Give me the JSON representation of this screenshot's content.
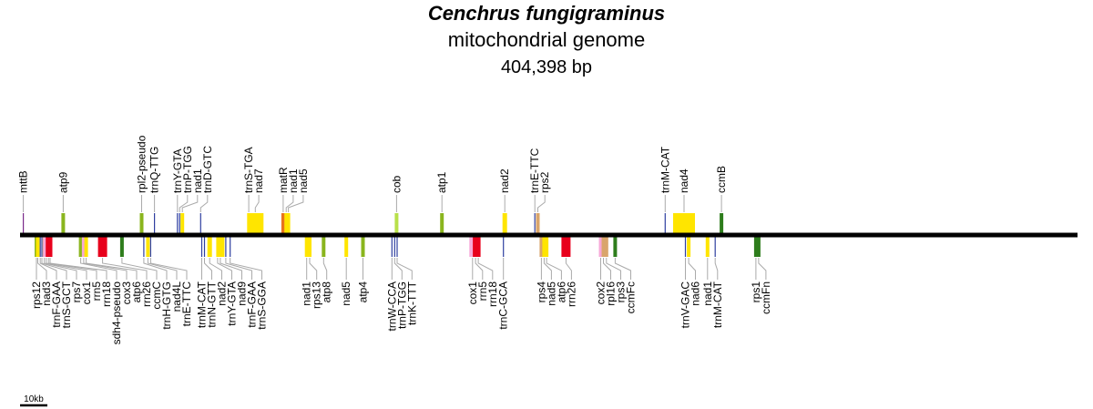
{
  "title": {
    "species": "Cenchrus fungigraminus",
    "subtitle": "mitochondrial genome",
    "size": "404,398 bp"
  },
  "scale_bar": {
    "label": "10kb",
    "length_kb": 10
  },
  "genome_length_bp": 404398,
  "colors": {
    "backbone": "#000000",
    "leader": "#aaaaaa",
    "yellow": "#ffe500",
    "red": "#e8001c",
    "green": "#2e7d1c",
    "olive": "#8ab51e",
    "lightgreen": "#b8e04a",
    "tan": "#d9a56b",
    "pink": "#f7a8d8",
    "blue": "#2f3fa0",
    "purple": "#7a2a8a",
    "orange": "#e8741c"
  },
  "genes_top": [
    {
      "label": "mttB",
      "kb": 1.2,
      "color": "purple"
    },
    {
      "label": "atp9",
      "kb": 15.8,
      "color": "olive"
    },
    {
      "label": "rpl2-pseudo",
      "kb": 44.5,
      "color": "olive"
    },
    {
      "label": "trnQ-TTG",
      "kb": 49.2,
      "color": "blue"
    },
    {
      "label": "trnY-GTA",
      "kb": 57.6,
      "color": "blue"
    },
    {
      "label": "trnP-TGG",
      "kb": 58.4,
      "color": "blue"
    },
    {
      "label": "nad1",
      "kb": 59.4,
      "color": "yellow"
    },
    {
      "label": "trnD-GTC",
      "kb": 66.1,
      "color": "blue"
    },
    {
      "label": "trnS-TGA",
      "kb": 83.7,
      "color": "blue"
    },
    {
      "label": "nad7",
      "kb": 86.1,
      "color": "yellow"
    },
    {
      "label": "matR",
      "kb": 96.3,
      "color": "orange"
    },
    {
      "label": "nad1",
      "kb": 97.4,
      "color": "yellow"
    },
    {
      "label": "nad5",
      "kb": 98.2,
      "color": "yellow"
    },
    {
      "label": "cob",
      "kb": 137.8,
      "color": "lightgreen"
    },
    {
      "label": "atp1",
      "kb": 154.4,
      "color": "olive"
    },
    {
      "label": "nad2",
      "kb": 177.4,
      "color": "yellow"
    },
    {
      "label": "trnE-TTC",
      "kb": 188.4,
      "color": "blue"
    },
    {
      "label": "rps2",
      "kb": 189.5,
      "color": "tan"
    },
    {
      "label": "trnM-CAT",
      "kb": 236.1,
      "color": "blue"
    },
    {
      "label": "nad4",
      "kb": 243.0,
      "color": "yellow"
    },
    {
      "label": "ccmB",
      "kb": 256.7,
      "color": "green"
    }
  ],
  "genes_bottom": [
    {
      "label": "rps12",
      "kb": 6.0,
      "color": "olive"
    },
    {
      "label": "nad3",
      "kb": 6.5,
      "color": "yellow"
    },
    {
      "label": "trnF-GAA",
      "kb": 7.4,
      "color": "blue"
    },
    {
      "label": "trnS-GCT",
      "kb": 8.0,
      "color": "blue"
    },
    {
      "label": "rps7",
      "kb": 8.9,
      "color": "tan"
    },
    {
      "label": "cox1",
      "kb": 9.6,
      "color": "pink"
    },
    {
      "label": "rrn5",
      "kb": 10.4,
      "color": "red"
    },
    {
      "label": "rrn18",
      "kb": 11.0,
      "color": "red"
    },
    {
      "label": "sdh4-pseudo",
      "kb": 22.2,
      "color": "olive"
    },
    {
      "label": "cox3",
      "kb": 23.3,
      "color": "pink"
    },
    {
      "label": "atp6",
      "kb": 24.2,
      "color": "yellow"
    },
    {
      "label": "rrn26",
      "kb": 30.2,
      "color": "red"
    },
    {
      "label": "ccmC",
      "kb": 37.3,
      "color": "green"
    },
    {
      "label": "trnH-GTG",
      "kb": 45.3,
      "color": "blue"
    },
    {
      "label": "nad4L",
      "kb": 46.8,
      "color": "yellow"
    },
    {
      "label": "trnE-TTC",
      "kb": 47.8,
      "color": "blue"
    },
    {
      "label": "trnM-CAT",
      "kb": 66.5,
      "color": "blue"
    },
    {
      "label": "trnN-GTT",
      "kb": 67.5,
      "color": "blue"
    },
    {
      "label": "nad2",
      "kb": 69.4,
      "color": "yellow"
    },
    {
      "label": "trnY-GTA",
      "kb": 72.3,
      "color": "blue"
    },
    {
      "label": "nad9",
      "kb": 73.3,
      "color": "yellow"
    },
    {
      "label": "trnF-GAA",
      "kb": 75.3,
      "color": "blue"
    },
    {
      "label": "trnS-GGA",
      "kb": 76.9,
      "color": "blue"
    },
    {
      "label": "nad1",
      "kb": 104.9,
      "color": "yellow"
    },
    {
      "label": "rps13",
      "kb": 106.0,
      "color": "yellow"
    },
    {
      "label": "atp8",
      "kb": 111.1,
      "color": "olive"
    },
    {
      "label": "nad5",
      "kb": 119.4,
      "color": "yellow"
    },
    {
      "label": "atp4",
      "kb": 125.5,
      "color": "olive"
    },
    {
      "label": "trnW-CCA",
      "kb": 136.1,
      "color": "blue"
    },
    {
      "label": "trnP-TGG",
      "kb": 137.1,
      "color": "blue"
    },
    {
      "label": "trnK-TTT",
      "kb": 138.0,
      "color": "blue"
    },
    {
      "label": "cox1",
      "kb": 165.6,
      "color": "pink"
    },
    {
      "label": "rrn5",
      "kb": 166.7,
      "color": "red"
    },
    {
      "label": "rrn18",
      "kb": 167.7,
      "color": "red"
    },
    {
      "label": "trnC-GCA",
      "kb": 176.9,
      "color": "blue"
    },
    {
      "label": "rps4",
      "kb": 190.8,
      "color": "tan"
    },
    {
      "label": "nad5",
      "kb": 191.8,
      "color": "yellow"
    },
    {
      "label": "atp6",
      "kb": 192.7,
      "color": "yellow"
    },
    {
      "label": "rrn26",
      "kb": 199.8,
      "color": "red"
    },
    {
      "label": "cox2",
      "kb": 212.5,
      "color": "pink"
    },
    {
      "label": "rpl16",
      "kb": 213.5,
      "color": "tan"
    },
    {
      "label": "rps3",
      "kb": 214.6,
      "color": "tan"
    },
    {
      "label": "ccmFc",
      "kb": 217.8,
      "color": "green"
    },
    {
      "label": "trnV-GAC",
      "kb": 243.5,
      "color": "blue"
    },
    {
      "label": "nad6",
      "kb": 244.7,
      "color": "yellow"
    },
    {
      "label": "nad1",
      "kb": 251.6,
      "color": "yellow"
    },
    {
      "label": "trnM-CAT",
      "kb": 254.4,
      "color": "blue"
    },
    {
      "label": "rps1",
      "kb": 269.3,
      "color": "green"
    },
    {
      "label": "ccmFn",
      "kb": 270.3,
      "color": "green"
    }
  ]
}
